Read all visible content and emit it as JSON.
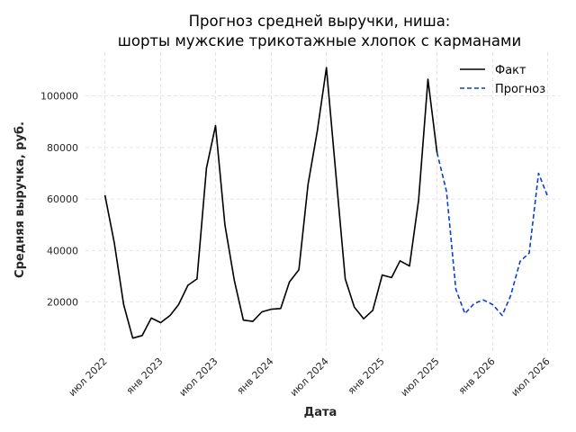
{
  "chart_data": {
    "type": "line",
    "title": [
      "Прогноз средней выручки, ниша:",
      "шорты мужские трикотажные хлопок с карманами"
    ],
    "xlabel": "Дата",
    "ylabel": "Средняя выручка, руб.",
    "x_ticks": [
      {
        "date": "2022-07",
        "label": "июл 2022"
      },
      {
        "date": "2023-01",
        "label": "янв 2023"
      },
      {
        "date": "2023-07",
        "label": "июл 2023"
      },
      {
        "date": "2024-01",
        "label": "янв 2024"
      },
      {
        "date": "2024-07",
        "label": "июл 2024"
      },
      {
        "date": "2025-01",
        "label": "янв 2025"
      },
      {
        "date": "2025-07",
        "label": "июл 2025"
      },
      {
        "date": "2026-01",
        "label": "янв 2026"
      },
      {
        "date": "2026-07",
        "label": "июл 2026"
      }
    ],
    "y_ticks": [
      20000,
      40000,
      60000,
      80000,
      100000
    ],
    "xlim": [
      "2022-04-28",
      "2026-08-10"
    ],
    "ylim": [
      1000,
      117000
    ],
    "grid": true,
    "legend_position": "top-right",
    "series": [
      {
        "name": "Факт",
        "color": "#000000",
        "dash": "solid",
        "points": [
          [
            "2022-07-01",
            61500
          ],
          [
            "2022-08-01",
            43000
          ],
          [
            "2022-09-01",
            19000
          ],
          [
            "2022-10-01",
            6000
          ],
          [
            "2022-11-01",
            7000
          ],
          [
            "2022-12-01",
            13800
          ],
          [
            "2023-01-01",
            12000
          ],
          [
            "2023-02-01",
            14800
          ],
          [
            "2023-03-01",
            19000
          ],
          [
            "2023-04-01",
            26500
          ],
          [
            "2023-05-01",
            29000
          ],
          [
            "2023-06-01",
            72000
          ],
          [
            "2023-07-01",
            88500
          ],
          [
            "2023-08-01",
            50000
          ],
          [
            "2023-09-01",
            28500
          ],
          [
            "2023-10-01",
            13000
          ],
          [
            "2023-11-01",
            12500
          ],
          [
            "2023-12-01",
            16200
          ],
          [
            "2024-01-01",
            17200
          ],
          [
            "2024-02-01",
            17500
          ],
          [
            "2024-03-01",
            27800
          ],
          [
            "2024-04-01",
            32500
          ],
          [
            "2024-05-01",
            65500
          ],
          [
            "2024-06-01",
            86500
          ],
          [
            "2024-07-01",
            111000
          ],
          [
            "2024-08-01",
            70000
          ],
          [
            "2024-09-01",
            29000
          ],
          [
            "2024-10-01",
            18000
          ],
          [
            "2024-11-01",
            13500
          ],
          [
            "2024-12-01",
            16800
          ],
          [
            "2025-01-01",
            30500
          ],
          [
            "2025-02-01",
            29500
          ],
          [
            "2025-03-01",
            36000
          ],
          [
            "2025-04-01",
            34000
          ],
          [
            "2025-05-01",
            59500
          ],
          [
            "2025-06-01",
            106500
          ],
          [
            "2025-07-01",
            78000
          ]
        ]
      },
      {
        "name": "Прогноз",
        "color": "#0a3fd1",
        "dash": "dashed",
        "points": [
          [
            "2025-07-01",
            78000
          ],
          [
            "2025-08-01",
            63000
          ],
          [
            "2025-09-01",
            25000
          ],
          [
            "2025-10-01",
            15500
          ],
          [
            "2025-11-01",
            19500
          ],
          [
            "2025-12-01",
            20800
          ],
          [
            "2026-01-01",
            19000
          ],
          [
            "2026-02-01",
            14800
          ],
          [
            "2026-03-01",
            22500
          ],
          [
            "2026-04-01",
            35800
          ],
          [
            "2026-05-01",
            39000
          ],
          [
            "2026-06-01",
            70000
          ],
          [
            "2026-07-01",
            61000
          ]
        ]
      }
    ]
  }
}
